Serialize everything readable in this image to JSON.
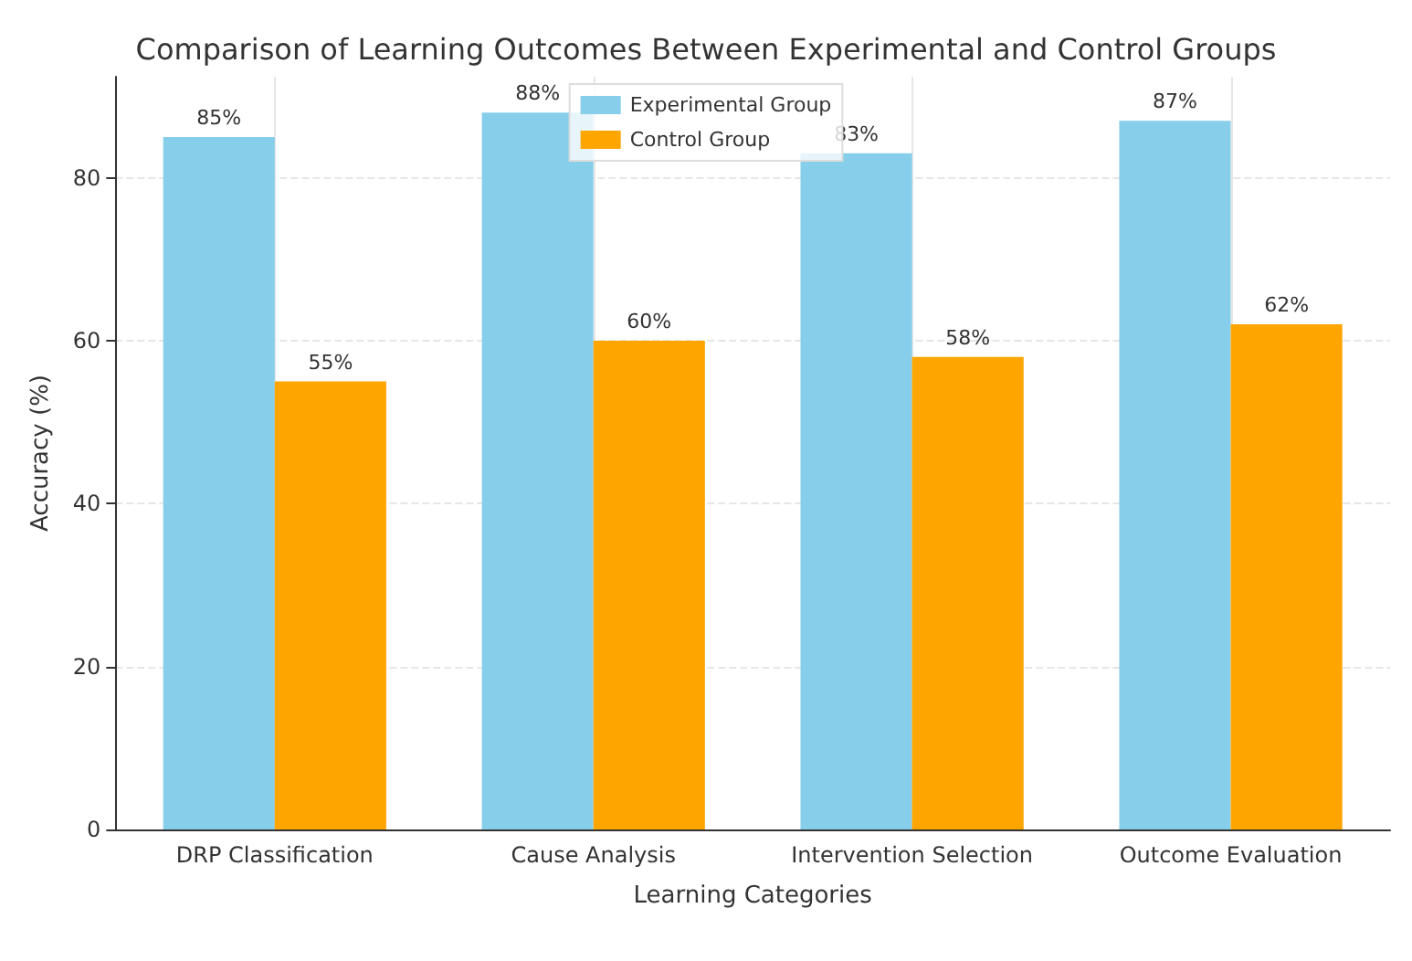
{
  "chart_data": {
    "type": "bar",
    "title": "Comparison of Learning Outcomes Between Experimental and Control Groups",
    "xlabel": "Learning Categories",
    "ylabel": "Accuracy (%)",
    "categories": [
      "DRP Classification",
      "Cause Analysis",
      "Intervention Selection",
      "Outcome Evaluation"
    ],
    "series": [
      {
        "name": "Experimental Group",
        "color": "#87ceeb",
        "values": [
          85,
          88,
          83,
          87
        ],
        "value_labels": [
          "85%",
          "88%",
          "83%",
          "87%"
        ]
      },
      {
        "name": "Control Group",
        "color": "#ffa500",
        "values": [
          55,
          60,
          58,
          62
        ],
        "value_labels": [
          "55%",
          "60%",
          "58%",
          "62%"
        ]
      }
    ],
    "ylim": [
      0,
      92.4
    ],
    "yticks": [
      0,
      20,
      40,
      60,
      80
    ],
    "grid": true,
    "legend": "top"
  }
}
